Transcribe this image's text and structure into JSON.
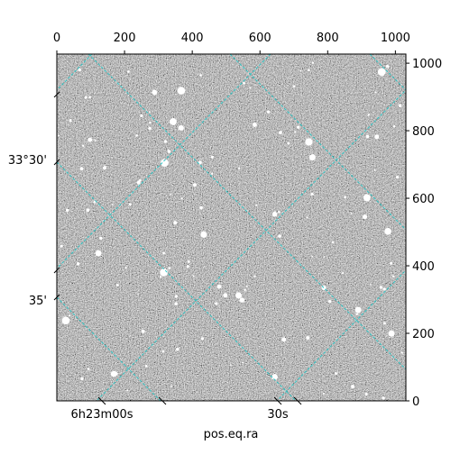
{
  "chart_data": {
    "type": "image",
    "xlabel": "pos.eq.ra",
    "xlim": [
      0,
      1031
    ],
    "xticks": [
      0,
      200,
      400,
      600,
      800,
      1000
    ],
    "ylim": [
      0,
      1027
    ],
    "yticks": [
      0,
      200,
      400,
      600,
      800,
      1000
    ],
    "dec_tick_labels": [
      "33°30'",
      "35'"
    ],
    "ra_tick_labels": [
      "6h23m00s",
      "30s"
    ],
    "grid_color": "#2ec4c4"
  }
}
